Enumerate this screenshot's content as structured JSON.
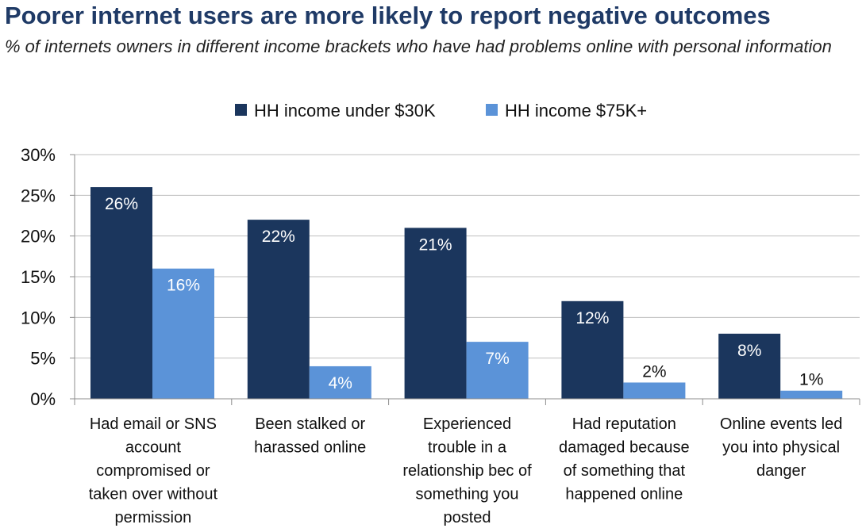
{
  "chart_data": {
    "type": "bar",
    "title": "Poorer internet users are more likely to report negative outcomes",
    "subtitle": "% of internets owners in different income brackets who have had problems online with personal information",
    "categories": [
      [
        "Had email or SNS",
        "account",
        "compromised or",
        "taken over without",
        "permission"
      ],
      [
        "Been stalked or",
        "harassed online"
      ],
      [
        "Experienced",
        "trouble in a",
        "relationship bec of",
        "something you",
        "posted"
      ],
      [
        "Had reputation",
        "damaged because",
        "of something that",
        "happened online"
      ],
      [
        "Online events led",
        "you into physical",
        "danger"
      ]
    ],
    "series": [
      {
        "name": "HH income under $30K",
        "color": "#1b365d",
        "values": [
          26,
          22,
          21,
          12,
          8
        ],
        "labels": [
          "26%",
          "22%",
          "21%",
          "12%",
          "8%"
        ]
      },
      {
        "name": "HH income $75K+",
        "color": "#5b93d8",
        "values": [
          16,
          4,
          7,
          2,
          1
        ],
        "labels": [
          "16%",
          "4%",
          "7%",
          "2%",
          "1%"
        ]
      }
    ],
    "ylim": [
      0,
      30
    ],
    "yticks": [
      0,
      5,
      10,
      15,
      20,
      25,
      30
    ],
    "ytick_labels": [
      "0%",
      "5%",
      "10%",
      "15%",
      "20%",
      "25%",
      "30%"
    ],
    "grid": true,
    "legend": "top-center"
  }
}
